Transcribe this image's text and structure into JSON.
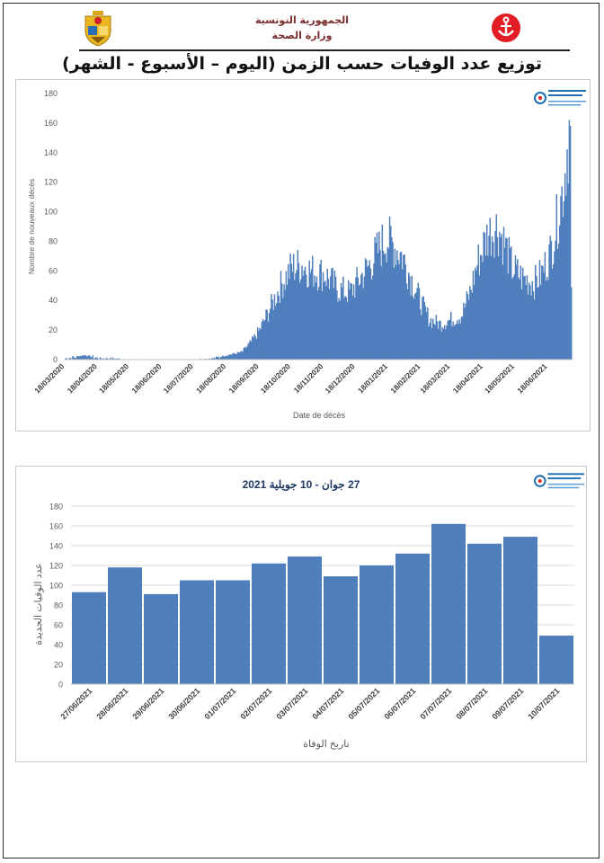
{
  "header": {
    "republic": "الجمهورية التونسية",
    "ministry": "وزارة الصحة",
    "title": "توزيع عدد الوفيات حسب الزمن (اليوم – الأسبوع - الشهر)"
  },
  "colors": {
    "bar": "#4f7ebd",
    "grid": "#d9d9d9",
    "axis_text": "#595959",
    "coat_of_arms": "#e7b620",
    "logo_red": "#e21d24"
  },
  "icons": {
    "left_logo": "tunisia-coat-of-arms-icon",
    "right_logo": "red-crescent-anchor-icon",
    "chart_logo": "observatory-logo-icon"
  },
  "chart_data": [
    {
      "type": "bar",
      "title": "",
      "xlabel": "Date de décès",
      "ylabel": "Nombre de nouveaux décès",
      "ylim": [
        0,
        180
      ],
      "yticks": [
        0,
        20,
        40,
        60,
        80,
        100,
        120,
        140,
        160,
        180
      ],
      "x_tick_labels": [
        "18/03/2020",
        "18/04/2020",
        "18/05/2020",
        "18/06/2020",
        "18/07/2020",
        "18/08/2020",
        "18/09/2020",
        "18/10/2020",
        "18/11/2020",
        "18/12/2020",
        "18/01/2021",
        "18/02/2021",
        "18/03/2021",
        "18/04/2021",
        "18/05/2021",
        "18/06/2021"
      ],
      "x_start": "2020-03-18",
      "x_end": "2021-07-10",
      "grid": false,
      "legend": "none",
      "trend_points": [
        [
          "2020-03-18",
          1
        ],
        [
          "2020-03-28",
          2
        ],
        [
          "2020-04-05",
          3
        ],
        [
          "2020-04-12",
          2
        ],
        [
          "2020-04-20",
          1
        ],
        [
          "2020-05-01",
          1
        ],
        [
          "2020-05-20",
          0
        ],
        [
          "2020-06-15",
          0
        ],
        [
          "2020-07-15",
          0
        ],
        [
          "2020-08-05",
          1
        ],
        [
          "2020-08-18",
          3
        ],
        [
          "2020-09-01",
          5
        ],
        [
          "2020-09-10",
          12
        ],
        [
          "2020-09-18",
          20
        ],
        [
          "2020-09-28",
          35
        ],
        [
          "2020-10-08",
          50
        ],
        [
          "2020-10-18",
          62
        ],
        [
          "2020-10-28",
          64
        ],
        [
          "2020-11-05",
          60
        ],
        [
          "2020-11-18",
          58
        ],
        [
          "2020-12-01",
          48
        ],
        [
          "2020-12-12",
          45
        ],
        [
          "2020-12-22",
          55
        ],
        [
          "2021-01-01",
          65
        ],
        [
          "2021-01-10",
          76
        ],
        [
          "2021-01-16",
          82
        ],
        [
          "2021-01-22",
          78
        ],
        [
          "2021-01-31",
          70
        ],
        [
          "2021-02-10",
          52
        ],
        [
          "2021-02-18",
          38
        ],
        [
          "2021-02-26",
          27
        ],
        [
          "2021-03-08",
          24
        ],
        [
          "2021-03-18",
          27
        ],
        [
          "2021-03-28",
          30
        ],
        [
          "2021-04-05",
          45
        ],
        [
          "2021-04-12",
          65
        ],
        [
          "2021-04-22",
          85
        ],
        [
          "2021-05-01",
          90
        ],
        [
          "2021-05-08",
          78
        ],
        [
          "2021-05-15",
          62
        ],
        [
          "2021-05-25",
          55
        ],
        [
          "2021-06-05",
          52
        ],
        [
          "2021-06-12",
          58
        ],
        [
          "2021-06-20",
          72
        ],
        [
          "2021-06-27",
          95
        ],
        [
          "2021-07-03",
          120
        ],
        [
          "2021-07-07",
          150
        ],
        [
          "2021-07-09",
          145
        ],
        [
          "2021-07-10",
          49
        ]
      ]
    },
    {
      "type": "bar",
      "title": "27 جوان - 10 جويلية 2021",
      "xlabel": "تاريخ الوفاة",
      "ylabel": "عدد الوفيات الجديدة",
      "ylim": [
        0,
        180
      ],
      "yticks": [
        0,
        20,
        40,
        60,
        80,
        100,
        120,
        140,
        160,
        180
      ],
      "categories": [
        "27/06/2021",
        "28/06/2021",
        "29/06/2021",
        "30/06/2021",
        "01/07/2021",
        "02/07/2021",
        "03/07/2021",
        "04/07/2021",
        "05/07/2021",
        "06/07/2021",
        "07/07/2021",
        "08/07/2021",
        "09/07/2021",
        "10/07/2021"
      ],
      "values": [
        93,
        118,
        91,
        105,
        105,
        122,
        129,
        109,
        120,
        132,
        162,
        142,
        149,
        49
      ],
      "grid": true,
      "legend": "none"
    }
  ]
}
